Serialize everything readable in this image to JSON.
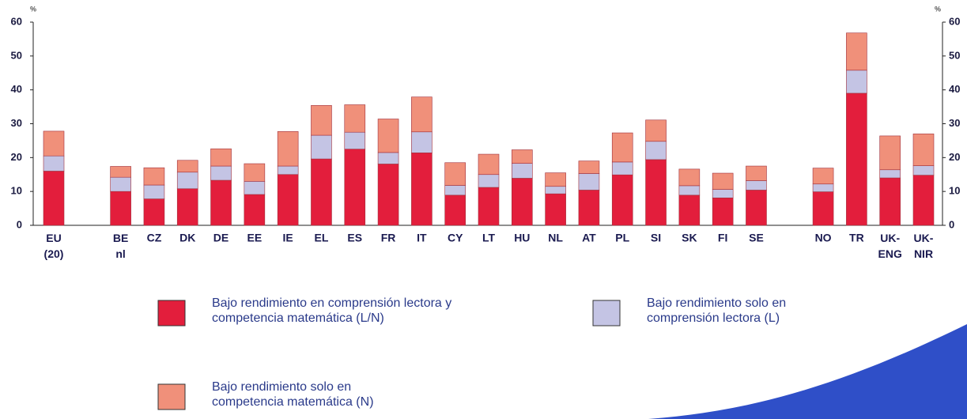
{
  "chart_data": {
    "type": "stacked_bar",
    "y_label": "%",
    "y2_label": "%",
    "categories": [
      "EU\n(20)",
      null,
      "BE\nnl",
      "CZ",
      "DK",
      "DE",
      "EE",
      "IE",
      "EL",
      "ES",
      "FR",
      "IT",
      "CY",
      "LT",
      "HU",
      "NL",
      "AT",
      "PL",
      "SI",
      "SK",
      "FI",
      "SE",
      null,
      "NO",
      "TR",
      "UK-\nENG",
      "UK-\nNIR"
    ],
    "series": [
      {
        "name": "Bajo rendimiento en comprensión lectora y\ncompetencia matemática (L/N)",
        "color": "#e31e3c",
        "values": [
          16,
          null,
          10,
          7.8,
          10.8,
          13.3,
          9.1,
          15,
          19.6,
          22.5,
          18.1,
          21.4,
          8.9,
          11.2,
          13.9,
          9.3,
          10.4,
          14.9,
          19.4,
          8.9,
          8.1,
          10.4,
          null,
          9.9,
          39,
          14,
          14.8
        ]
      },
      {
        "name": "Bajo rendimiento solo en\ncomprensión lectora (L)",
        "color": "#c4c4e4",
        "values": [
          4.5,
          null,
          4.2,
          4.1,
          4.9,
          4.2,
          3.9,
          2.5,
          7,
          5,
          3.4,
          6.2,
          2.9,
          3.8,
          4.4,
          2.2,
          4.9,
          3.8,
          5.4,
          2.8,
          2.5,
          2.8,
          null,
          2.3,
          6.8,
          2.4,
          2.8
        ]
      },
      {
        "name": "Bajo rendimiento solo en\ncompetencia matemática (N)",
        "color": "#f0907a",
        "values": [
          7.3,
          null,
          3.2,
          5.1,
          3.5,
          5.1,
          5.2,
          10.2,
          8.8,
          8.1,
          9.9,
          10.3,
          6.7,
          6,
          4,
          4,
          3.7,
          8.6,
          6.3,
          4.9,
          4.8,
          4.3,
          null,
          4.7,
          11,
          10,
          9.4
        ]
      }
    ],
    "ylim": [
      0,
      60
    ],
    "yticks": [
      0,
      10,
      20,
      30,
      40,
      50,
      60
    ],
    "y2lim": [
      0,
      60
    ],
    "y2ticks": [
      0,
      10,
      20,
      30,
      40,
      50,
      60
    ]
  }
}
